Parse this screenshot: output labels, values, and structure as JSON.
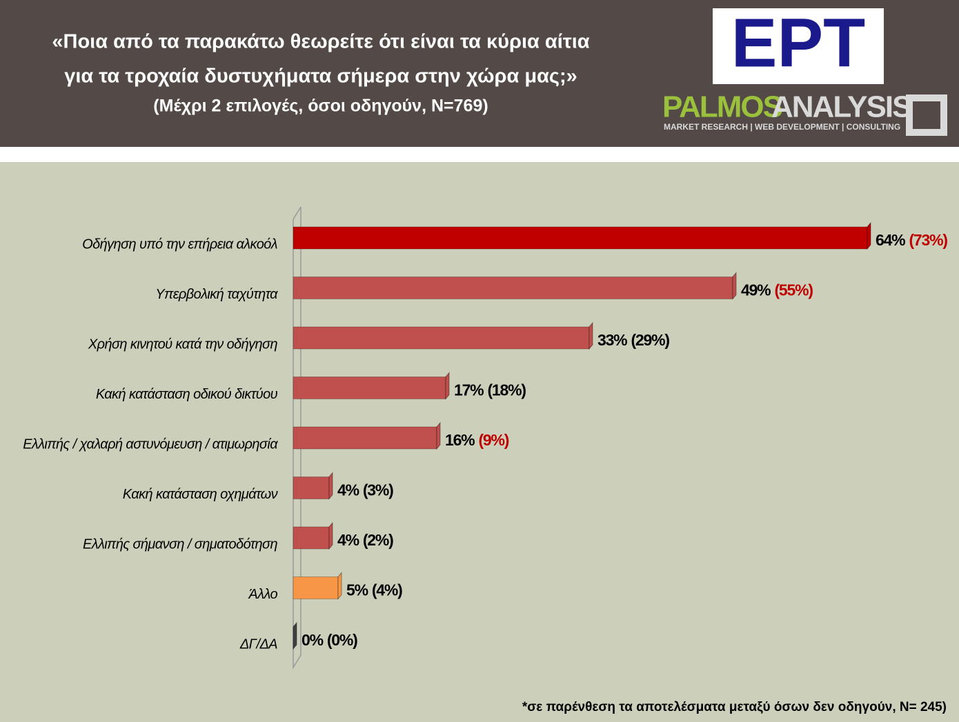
{
  "chart_data": {
    "type": "bar",
    "title_lines": [
      "«Ποια από τα παρακάτω θεωρείτε ότι είναι τα κύρια αίτια",
      "για τα τροχαία δυστυχήματα σήμερα στην χώρα μας;»"
    ],
    "subtitle": "(Μέχρι 2 επιλογές, όσοι οδηγούν, N=769)",
    "logo": {
      "ert": "ΕΡΤ",
      "brand_left": "PALMOS",
      "brand_right": "ANALYSIS",
      "tagline": "MARKET RESEARCH | WEB DEVELOPMENT | CONSULTING"
    },
    "categories": [
      "Οδήγηση υπό την επήρεια αλκοόλ",
      "Υπερβολική ταχύτητα",
      "Χρήση κινητού κατά την οδήγηση",
      "Κακή κατάσταση οδικού δικτύου",
      "Ελλιπής / χαλαρή  αστυνόμευση / ατιμωρησία",
      "Κακή κατάσταση οχημάτων",
      "Ελλιπής σήμανση / σηματοδότηση",
      "Άλλο",
      "ΔΓ/ΔΑ"
    ],
    "values": [
      64,
      49,
      33,
      17,
      16,
      4,
      4,
      5,
      0
    ],
    "value_labels": [
      "64%",
      "49%",
      "33%",
      "17%",
      "16%",
      "4%",
      "4%",
      "5%",
      "0%"
    ],
    "colors": [
      "#c00000",
      "#c0504d",
      "#c0504d",
      "#c0504d",
      "#c0504d",
      "#c0504d",
      "#c0504d",
      "#f79646",
      "#404040"
    ],
    "non_drivers": {
      "values": [
        73,
        55,
        29,
        18,
        9,
        3,
        2,
        4,
        0
      ],
      "value_labels": [
        "(73%)",
        "(55%)",
        "(29%)",
        "(18%)",
        "(9%)",
        "(3%)",
        "(2%)",
        "(4%)",
        "(0%)"
      ],
      "colors": [
        "#c00000",
        "#c00000",
        "#000000",
        "#000000",
        "#c00000",
        "#000000",
        "#000000",
        "#000000",
        "#000000"
      ]
    },
    "xlim": [
      0,
      70
    ],
    "note": "*σε παρένθεση τα αποτελέσματα μεταξύ όσων δεν οδηγούν, N= 245)"
  }
}
